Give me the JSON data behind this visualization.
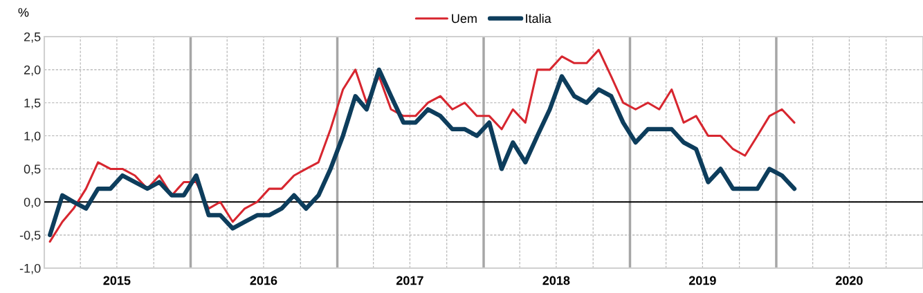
{
  "chart_data": {
    "type": "line",
    "ylabel": "%",
    "x": [
      "2015-01-15",
      "2015-02-15",
      "2015-03-15",
      "2015-04-15",
      "2015-05-15",
      "2015-06-15",
      "2015-07-15",
      "2015-08-15",
      "2015-09-15",
      "2015-10-15",
      "2015-11-15",
      "2015-12-15",
      "2016-01-15",
      "2016-02-15",
      "2016-03-15",
      "2016-04-15",
      "2016-05-15",
      "2016-06-15",
      "2016-07-15",
      "2016-08-15",
      "2016-09-15",
      "2016-10-15",
      "2016-11-15",
      "2016-12-15",
      "2017-01-15",
      "2017-02-15",
      "2017-03-15",
      "2017-04-15",
      "2017-05-15",
      "2017-06-15",
      "2017-07-15",
      "2017-08-15",
      "2017-09-15",
      "2017-10-15",
      "2017-11-15",
      "2017-12-15",
      "2018-01-15",
      "2018-02-15",
      "2018-03-15",
      "2018-04-15",
      "2018-05-15",
      "2018-06-15",
      "2018-07-15",
      "2018-08-15",
      "2018-09-15",
      "2018-10-15",
      "2018-11-15",
      "2018-12-15",
      "2019-01-15",
      "2019-02-15",
      "2019-03-15",
      "2019-04-15",
      "2019-05-15",
      "2019-06-15",
      "2019-07-15",
      "2019-08-15",
      "2019-09-15",
      "2019-10-15",
      "2019-11-15",
      "2019-12-15",
      "2020-01-15",
      "2020-02-15"
    ],
    "series": [
      {
        "name": "Uem",
        "color": "#d7262f",
        "values": [
          -0.6,
          -0.3,
          -0.1,
          0.2,
          0.6,
          0.5,
          0.5,
          0.4,
          0.2,
          0.4,
          0.1,
          0.3,
          0.3,
          -0.1,
          0.0,
          -0.3,
          -0.1,
          0.0,
          0.2,
          0.2,
          0.4,
          0.5,
          0.6,
          1.1,
          1.7,
          2.0,
          1.5,
          1.9,
          1.4,
          1.3,
          1.3,
          1.5,
          1.6,
          1.4,
          1.5,
          1.3,
          1.3,
          1.1,
          1.4,
          1.2,
          2.0,
          2.0,
          2.2,
          2.1,
          2.1,
          2.3,
          1.9,
          1.5,
          1.4,
          1.5,
          1.4,
          1.7,
          1.2,
          1.3,
          1.0,
          1.0,
          0.8,
          0.7,
          1.0,
          1.3,
          1.4,
          1.2
        ]
      },
      {
        "name": "Italia",
        "color": "#0d3d5c",
        "values": [
          -0.5,
          0.1,
          0.0,
          -0.1,
          0.2,
          0.2,
          0.4,
          0.3,
          0.2,
          0.3,
          0.1,
          0.1,
          0.4,
          -0.2,
          -0.2,
          -0.4,
          -0.3,
          -0.2,
          -0.2,
          -0.1,
          0.1,
          -0.1,
          0.1,
          0.5,
          1.0,
          1.6,
          1.4,
          2.0,
          1.6,
          1.2,
          1.2,
          1.4,
          1.3,
          1.1,
          1.1,
          1.0,
          1.2,
          0.5,
          0.9,
          0.6,
          1.0,
          1.4,
          1.9,
          1.6,
          1.5,
          1.7,
          1.6,
          1.2,
          0.9,
          1.1,
          1.1,
          1.1,
          0.9,
          0.8,
          0.3,
          0.5,
          0.2,
          0.2,
          0.2,
          0.5,
          0.4,
          0.2
        ]
      }
    ],
    "xlim": [
      "2015-01-01",
      "2021-01-01"
    ],
    "xticks": [
      {
        "value": "2015-04-01",
        "label": null
      },
      {
        "value": "2015-07-01",
        "label": "2015"
      },
      {
        "value": "2015-10-01",
        "label": null
      },
      {
        "value": "2016-04-01",
        "label": null
      },
      {
        "value": "2016-07-01",
        "label": "2016"
      },
      {
        "value": "2016-10-01",
        "label": null
      },
      {
        "value": "2017-04-01",
        "label": null
      },
      {
        "value": "2017-07-01",
        "label": "2017"
      },
      {
        "value": "2017-10-01",
        "label": null
      },
      {
        "value": "2018-04-01",
        "label": null
      },
      {
        "value": "2018-07-01",
        "label": "2018"
      },
      {
        "value": "2018-10-01",
        "label": null
      },
      {
        "value": "2019-04-01",
        "label": null
      },
      {
        "value": "2019-07-01",
        "label": "2019"
      },
      {
        "value": "2019-10-01",
        "label": null
      },
      {
        "value": "2020-04-01",
        "label": null
      },
      {
        "value": "2020-07-01",
        "label": "2020"
      },
      {
        "value": "2020-10-01",
        "label": null
      }
    ],
    "ylim": [
      -1.0,
      2.5
    ],
    "yticks": [
      {
        "value": -1.0,
        "label": "-1,0"
      },
      {
        "value": -0.5,
        "label": "-0,5"
      },
      {
        "value": 0.0,
        "label": "0,0"
      },
      {
        "value": 0.5,
        "label": "0,5"
      },
      {
        "value": 1.0,
        "label": "1,0"
      },
      {
        "value": 1.5,
        "label": "1,5"
      },
      {
        "value": 2.0,
        "label": "2,0"
      },
      {
        "value": 2.5,
        "label": "2,5"
      }
    ],
    "ref_lines": [
      {
        "axis": "y",
        "value": 0,
        "color": "#000000"
      },
      {
        "axis": "x",
        "value": "2016-01-01",
        "color": "#a6a6a6"
      },
      {
        "axis": "x",
        "value": "2017-01-01",
        "color": "#a6a6a6"
      },
      {
        "axis": "x",
        "value": "2018-01-01",
        "color": "#a6a6a6"
      },
      {
        "axis": "x",
        "value": "2019-01-01",
        "color": "#a6a6a6"
      },
      {
        "axis": "x",
        "value": "2020-01-01",
        "color": "#a6a6a6"
      }
    ],
    "grid": true,
    "legend": "top",
    "line_style": "solid"
  }
}
